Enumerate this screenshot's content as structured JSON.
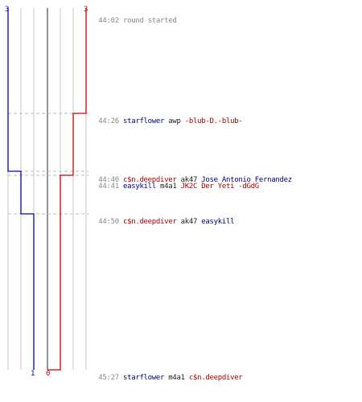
{
  "colors": {
    "team_blue": "#0000cc",
    "team_red": "#cc0000",
    "timestamp": "#888888",
    "grid": "#c8c8c8",
    "axis": "#808080"
  },
  "teams": {
    "blue_start": "3",
    "red_start": "3",
    "blue_end": "1",
    "red_end": "0"
  },
  "events": [
    {
      "time": "44:02",
      "type": "round_start",
      "message": "round started"
    },
    {
      "time": "44:26",
      "type": "kill",
      "killer": "starflower",
      "killer_team": "blue",
      "weapon": "awp",
      "victim": "-blub-D.-blub-",
      "victim_team": "red"
    },
    {
      "time": "44:40",
      "type": "kill",
      "killer": "c$n.deepdiver",
      "killer_team": "red",
      "weapon": "ak47",
      "victim": "Jose Antonio Fernandez",
      "victim_team": "blue"
    },
    {
      "time": "44:41",
      "type": "kill",
      "killer": "easykill",
      "killer_team": "blue",
      "weapon": "m4a1",
      "victim": "JK2C Der Yeti -dGdG",
      "victim_team": "red"
    },
    {
      "time": "44:50",
      "type": "kill",
      "killer": "c$n.deepdiver",
      "killer_team": "red",
      "weapon": "ak47",
      "victim": "easykill",
      "victim_team": "blue"
    },
    {
      "time": "45:27",
      "type": "kill",
      "killer": "starflower",
      "killer_team": "blue",
      "weapon": "m4a1",
      "victim": "c$n.deepdiver",
      "victim_team": "red"
    }
  ]
}
